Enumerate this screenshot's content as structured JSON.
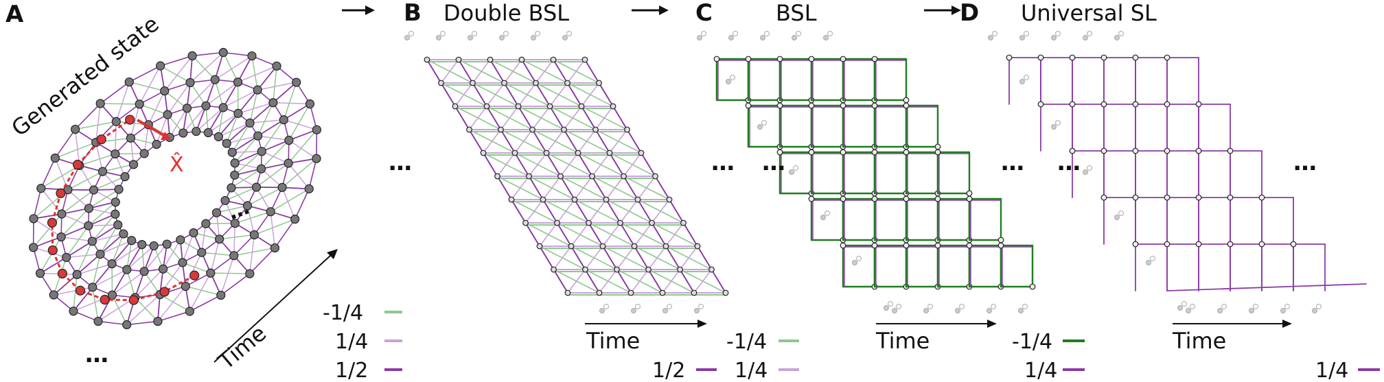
{
  "panels": {
    "a": {
      "letter": "A",
      "title": "Generated state",
      "axis_label": "Time",
      "operator": "X̂"
    },
    "b": {
      "letter": "B",
      "title": "Double BSL",
      "axis_label": "Time"
    },
    "c": {
      "letter": "C",
      "title": "BSL",
      "axis_label": "Time"
    },
    "d": {
      "letter": "D",
      "title": "Universal SL",
      "axis_label": "Time"
    }
  },
  "ellipsis": "…",
  "legend_a": [
    {
      "label": "-1/4",
      "color": "#8fc78f"
    },
    {
      "label": "1/4",
      "color": "#c8a2d9"
    },
    {
      "label": "1/2",
      "color": "#8a3aa6"
    }
  ],
  "legend_b": [
    {
      "label": "-1/4",
      "color": "#8fc78f"
    },
    {
      "label": "1/4",
      "color": "#c8a2d9"
    },
    {
      "label": "1/2",
      "color": "#8a3aa6"
    }
  ],
  "legend_c": [
    {
      "label": "-1/4",
      "color": "#1e7d1e"
    },
    {
      "label": "1/4",
      "color": "#8a3aa6"
    }
  ],
  "legend_d": [
    {
      "label": "1/4",
      "color": "#8a3aa6"
    }
  ],
  "colors": {
    "purple": "#8a3aa6",
    "light_purple": "#c8a2d9",
    "light_green": "#8fc78f",
    "dark_green": "#1e7d1e",
    "red": "#e03030",
    "node_gray": "#666666",
    "faint": "#bbbbbb"
  }
}
